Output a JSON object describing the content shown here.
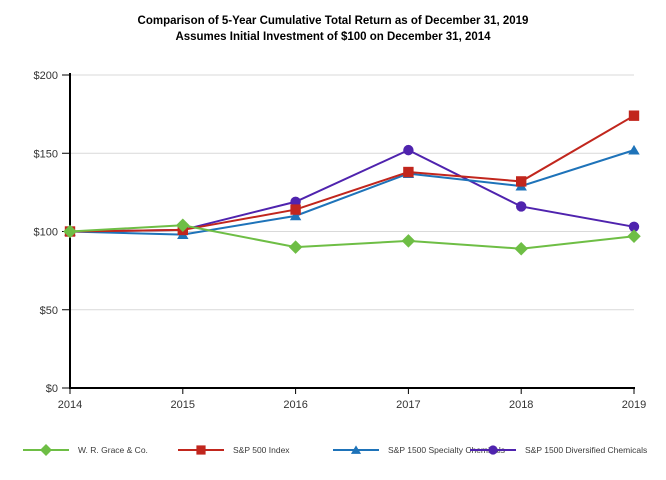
{
  "title": {
    "line1": "Comparison of 5-Year Cumulative Total Return as of December 31, 2019",
    "line2": "Assumes Initial Investment of $100 on December 31, 2014"
  },
  "chart_data": {
    "type": "line",
    "x_labels": [
      "2014",
      "2015",
      "2016",
      "2017",
      "2018",
      "2019"
    ],
    "yticks": [
      {
        "value": 0,
        "label": "$0"
      },
      {
        "value": 50,
        "label": "$50"
      },
      {
        "value": 100,
        "label": "$100"
      },
      {
        "value": 150,
        "label": "$150"
      },
      {
        "value": 200,
        "label": "$200"
      }
    ],
    "ylim": [
      0,
      200
    ],
    "grid": true,
    "legend_position": "bottom",
    "axis_color": "#000000",
    "gridline_color": "#d9d9d9",
    "tick_label_color": "#333333",
    "series": [
      {
        "name": "W. R. Grace & Co.",
        "marker": "diamond",
        "color": "#6ebe45",
        "values": [
          100,
          104,
          90,
          94,
          89,
          97
        ]
      },
      {
        "name": "S&P 500 Index",
        "marker": "square",
        "color": "#c1261d",
        "values": [
          100,
          101,
          114,
          138,
          132,
          174
        ]
      },
      {
        "name": "S&P 1500 Specialty Chemicals",
        "marker": "triangle",
        "color": "#1e73b9",
        "values": [
          100,
          98,
          110,
          137,
          129,
          152
        ]
      },
      {
        "name": "S&P 1500 Diversified Chemicals",
        "marker": "circle",
        "color": "#4f23ae",
        "values": [
          100,
          101,
          119,
          152,
          116,
          103
        ]
      }
    ]
  }
}
